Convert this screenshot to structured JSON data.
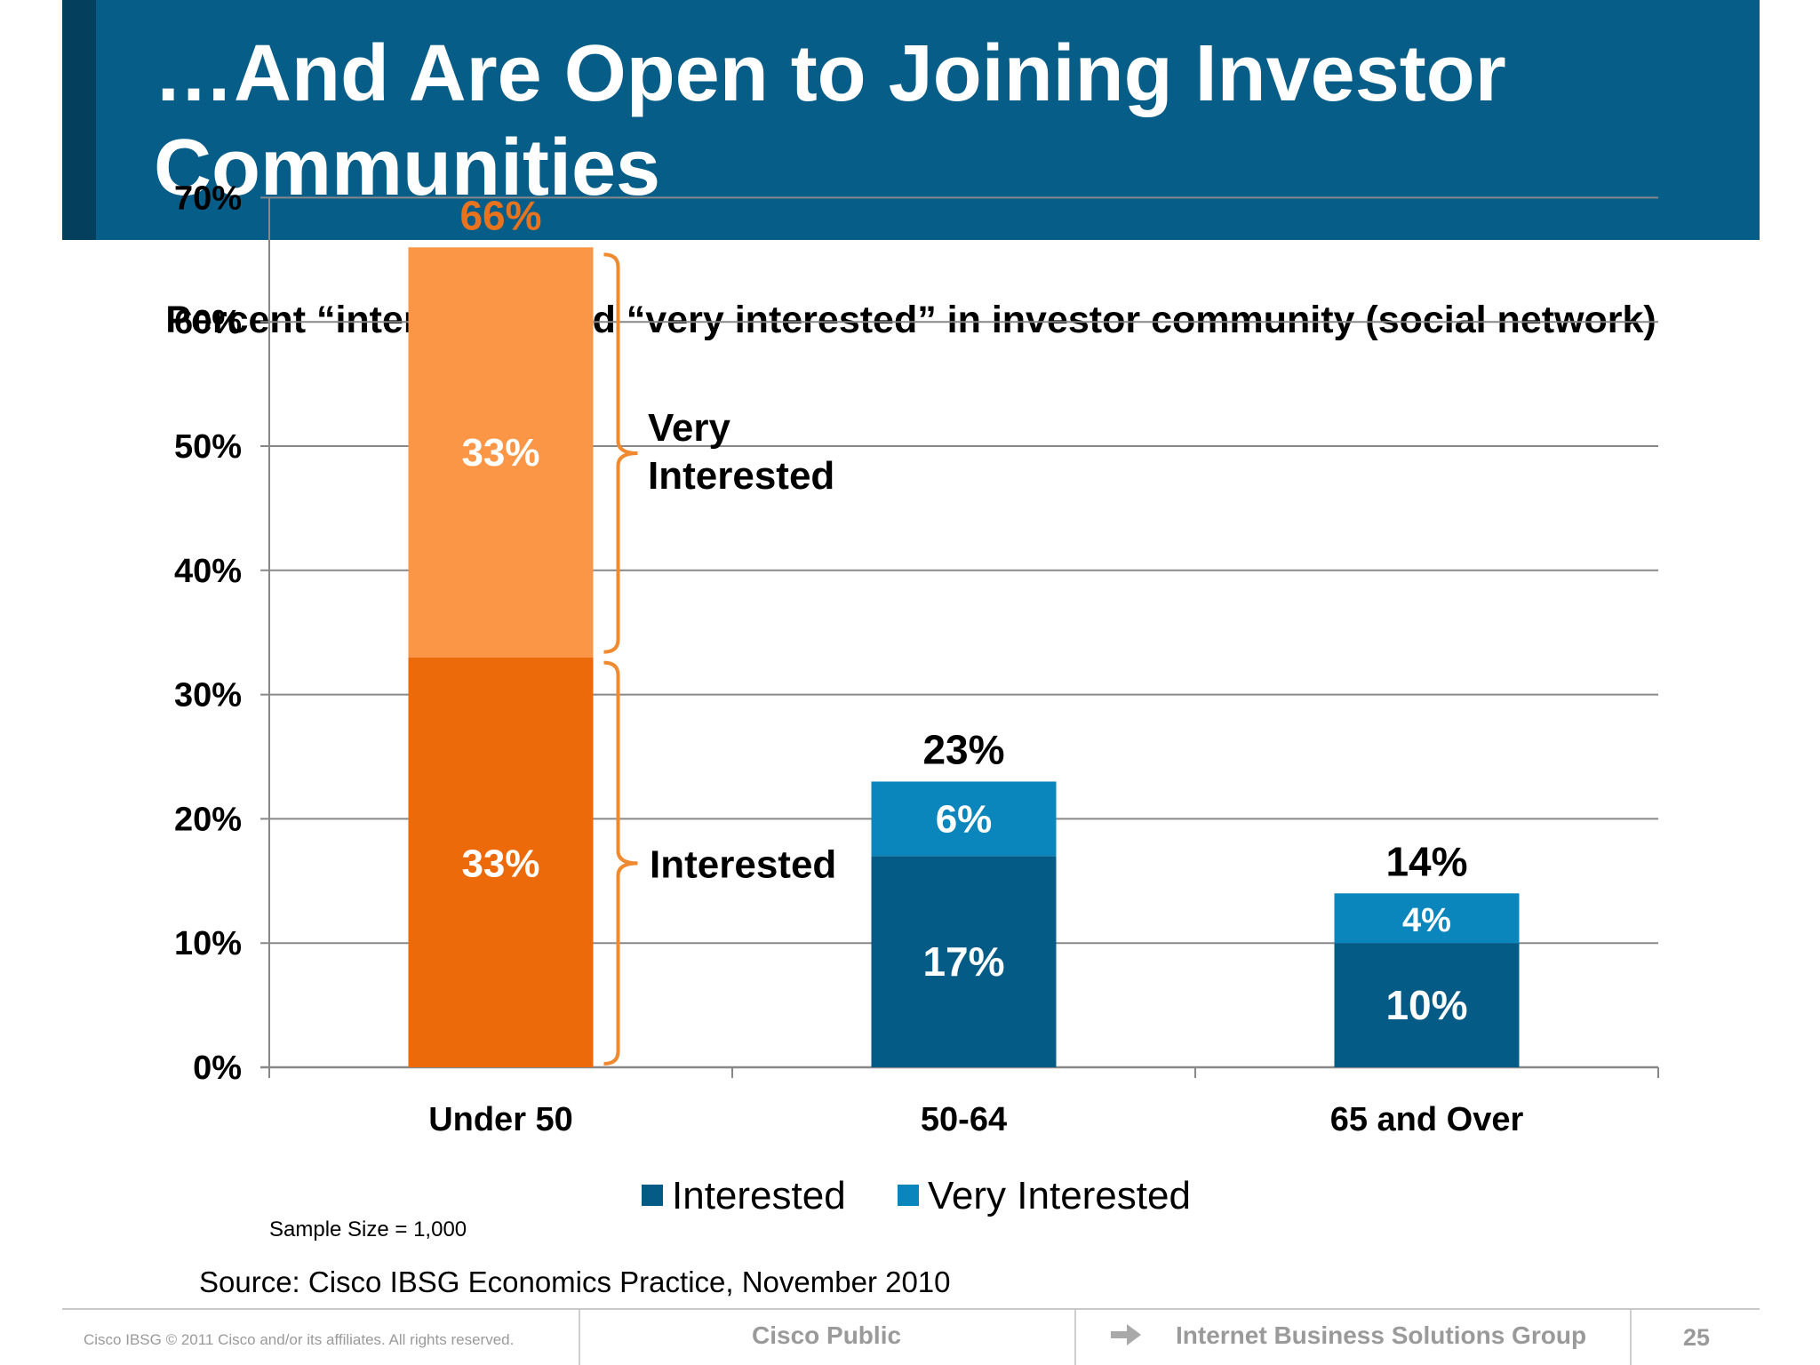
{
  "slide": {
    "title": "…And Are Open to Joining Investor Communities",
    "subtitle": "Percent “interested” and “very interested” in investor community (social network)",
    "sample_size": "Sample Size = 1,000",
    "source": "Source: Cisco IBSG Economics Practice, November 2010",
    "brace_labels": {
      "very_interested": [
        "Very",
        "Interested"
      ],
      "interested": "Interested"
    }
  },
  "footer": {
    "copyright": "Cisco IBSG © 2011 Cisco and/or its affiliates. All rights reserved.",
    "classification": "Cisco Public",
    "arrow_icon": "arrow-right-icon",
    "group": "Internet Business Solutions Group",
    "page_number": "25"
  },
  "colors": {
    "title_bar": "#055d88",
    "title_accent": "#043f5e",
    "interested": "#045b86",
    "very_interested": "#0b86bd",
    "under50_interested": "#ec6a0a",
    "under50_very_interested": "#fb9647",
    "orange_label": "#e8731e",
    "brace": "#f08a30",
    "grid": "#888888"
  },
  "chart_data": {
    "type": "bar",
    "stacked": true,
    "categories": [
      "Under 50",
      "50-64",
      "65 and Over"
    ],
    "series": [
      {
        "name": "Interested",
        "values": [
          33,
          17,
          10
        ],
        "labels": [
          "33%",
          "17%",
          "10%"
        ]
      },
      {
        "name": "Very Interested",
        "values": [
          33,
          6,
          4
        ],
        "labels": [
          "33%",
          "6%",
          "4%"
        ]
      }
    ],
    "totals": [
      66,
      23,
      14
    ],
    "total_labels": [
      "66%",
      "23%",
      "14%"
    ],
    "ylim": [
      0,
      70
    ],
    "yticks": [
      0,
      10,
      20,
      30,
      40,
      50,
      60,
      70
    ],
    "ytick_labels": [
      "0%",
      "10%",
      "20%",
      "30%",
      "40%",
      "50%",
      "60%",
      "70%"
    ],
    "grid": true,
    "legend": "bottom",
    "legend_entries": [
      "Interested",
      "Very Interested"
    ],
    "xlabel": "",
    "ylabel": ""
  }
}
